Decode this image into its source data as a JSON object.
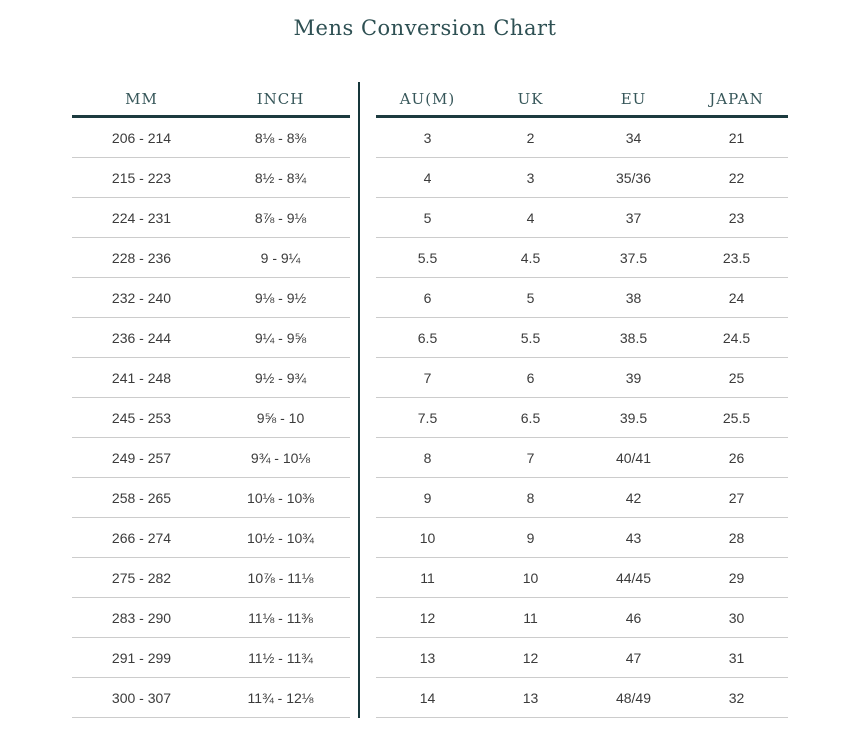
{
  "page": {
    "title": "Mens Conversion Chart"
  },
  "colors": {
    "background": "#ffffff",
    "accent_text": "#2e5053",
    "heavy_rule": "#1c3b3f",
    "vertical_divider": "#16363a",
    "body_text": "#3b3b3b",
    "row_separator": "#cccccc"
  },
  "chart_data": {
    "type": "table",
    "title": "Mens Conversion Chart",
    "layout": "two side-by-side tables separated by a vertical rule; 15 aligned rows",
    "tables": [
      {
        "name": "foot-measurement",
        "headers": [
          "MM",
          "INCH"
        ],
        "rows": [
          [
            "206 - 214",
            "8⅛ - 8⅜"
          ],
          [
            "215 - 223",
            "8½ - 8¾"
          ],
          [
            "224 - 231",
            "8⅞ - 9⅛"
          ],
          [
            "228 - 236",
            "9 - 9¼"
          ],
          [
            "232 - 240",
            "9⅛ - 9½"
          ],
          [
            "236 - 244",
            "9¼ - 9⅝"
          ],
          [
            "241 - 248",
            "9½ - 9¾"
          ],
          [
            "245 - 253",
            "9⅝ - 10"
          ],
          [
            "249 - 257",
            "9¾ - 10⅛"
          ],
          [
            "258 - 265",
            "10⅛ - 10⅜"
          ],
          [
            "266 - 274",
            "10½ - 10¾"
          ],
          [
            "275 - 282",
            "10⅞ - 11⅛"
          ],
          [
            "283 - 290",
            "11⅛ - 11⅜"
          ],
          [
            "291 - 299",
            "11½ - 11¾"
          ],
          [
            "300 - 307",
            "11¾ - 12⅛"
          ]
        ]
      },
      {
        "name": "size-conversion",
        "headers": [
          "AU(M)",
          "UK",
          "EU",
          "JAPAN"
        ],
        "rows": [
          [
            "3",
            "2",
            "34",
            "21"
          ],
          [
            "4",
            "3",
            "35/36",
            "22"
          ],
          [
            "5",
            "4",
            "37",
            "23"
          ],
          [
            "5.5",
            "4.5",
            "37.5",
            "23.5"
          ],
          [
            "6",
            "5",
            "38",
            "24"
          ],
          [
            "6.5",
            "5.5",
            "38.5",
            "24.5"
          ],
          [
            "7",
            "6",
            "39",
            "25"
          ],
          [
            "7.5",
            "6.5",
            "39.5",
            "25.5"
          ],
          [
            "8",
            "7",
            "40/41",
            "26"
          ],
          [
            "9",
            "8",
            "42",
            "27"
          ],
          [
            "10",
            "9",
            "43",
            "28"
          ],
          [
            "11",
            "10",
            "44/45",
            "29"
          ],
          [
            "12",
            "11",
            "46",
            "30"
          ],
          [
            "13",
            "12",
            "47",
            "31"
          ],
          [
            "14",
            "13",
            "48/49",
            "32"
          ]
        ]
      }
    ]
  }
}
